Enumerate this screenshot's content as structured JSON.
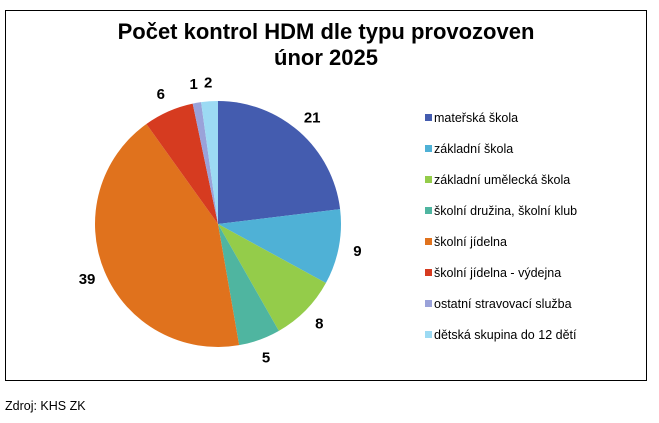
{
  "title": {
    "line1": "Počet kontrol HDM dle typu provozoven",
    "line2": "únor 2025"
  },
  "source": "Zdroj: KHS ZK",
  "chart_data": {
    "type": "pie",
    "title": "Počet kontrol HDM dle typu provozoven únor 2025",
    "categories": [
      "mateřská škola",
      "základní škola",
      "základní umělecká škola",
      "školní družina, školní klub",
      "školní jídelna",
      "školní jídelna - výdejna",
      "ostatní stravovací služba",
      "dětská skupina do 12 dětí"
    ],
    "values": [
      21,
      9,
      8,
      5,
      39,
      6,
      1,
      2
    ],
    "colors": [
      "#445CAF",
      "#4FB1D6",
      "#94CC4A",
      "#4FB5A0",
      "#E0721D",
      "#D63B20",
      "#9AA2D9",
      "#9CDAF3"
    ],
    "data_labels": [
      "21",
      "9",
      "8",
      "5",
      "39",
      "6",
      "1",
      "2"
    ],
    "legend_position": "right",
    "start_angle": "12 o'clock, clockwise"
  },
  "legend": [
    {
      "label": "mateřská škola",
      "color": "#445CAF"
    },
    {
      "label": "základní škola",
      "color": "#4FB1D6"
    },
    {
      "label": "základní umělecká škola",
      "color": "#94CC4A"
    },
    {
      "label": "školní družina, školní klub",
      "color": "#4FB5A0"
    },
    {
      "label": "školní jídelna",
      "color": "#E0721D"
    },
    {
      "label": "školní jídelna - výdejna",
      "color": "#D63B20"
    },
    {
      "label": "ostatní stravovací služba",
      "color": "#9AA2D9"
    },
    {
      "label": "dětská skupina do 12 dětí",
      "color": "#9CDAF3"
    }
  ]
}
